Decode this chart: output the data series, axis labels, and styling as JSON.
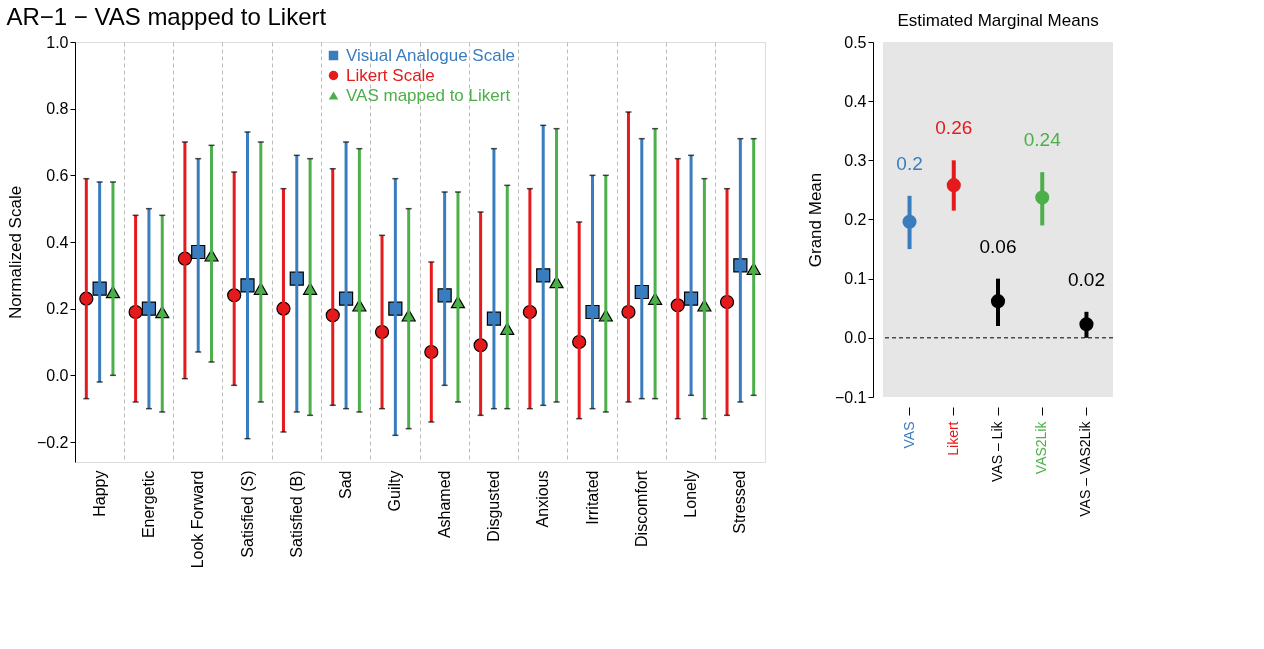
{
  "chart_data": [
    {
      "type": "scatter",
      "title": "AR−1 − VAS mapped to Likert",
      "ylabel": "Normalized Scale",
      "categories": [
        "Happy",
        "Energetic",
        "Look Forward",
        "Satisfied (S)",
        "Satisfied (B)",
        "Sad",
        "Guilty",
        "Ashamed",
        "Disgusted",
        "Anxious",
        "Irritated",
        "Discomfort",
        "Lonely",
        "Stressed"
      ],
      "series": [
        {
          "name": "Visual Analogue Scale",
          "color": "#3a7dbf",
          "marker": "square",
          "values": [
            0.26,
            0.2,
            0.37,
            0.27,
            0.29,
            0.23,
            0.2,
            0.24,
            0.17,
            0.3,
            0.19,
            0.25,
            0.23,
            0.33
          ],
          "errors": [
            [
              -0.02,
              0.58
            ],
            [
              -0.1,
              0.5
            ],
            [
              0.07,
              0.65
            ],
            [
              -0.19,
              0.73
            ],
            [
              -0.11,
              0.66
            ],
            [
              -0.1,
              0.7
            ],
            [
              -0.18,
              0.59
            ],
            [
              -0.03,
              0.55
            ],
            [
              -0.1,
              0.68
            ],
            [
              -0.09,
              0.75
            ],
            [
              -0.1,
              0.6
            ],
            [
              -0.07,
              0.71
            ],
            [
              -0.06,
              0.66
            ],
            [
              -0.08,
              0.71
            ]
          ]
        },
        {
          "name": "Likert Scale",
          "color": "#e41a1c",
          "marker": "circle",
          "values": [
            0.23,
            0.19,
            0.35,
            0.24,
            0.2,
            0.18,
            0.13,
            0.07,
            0.09,
            0.19,
            0.1,
            0.19,
            0.21,
            0.22
          ],
          "errors": [
            [
              -0.07,
              0.59
            ],
            [
              -0.08,
              0.48
            ],
            [
              -0.01,
              0.7
            ],
            [
              -0.03,
              0.61
            ],
            [
              -0.17,
              0.56
            ],
            [
              -0.09,
              0.62
            ],
            [
              -0.1,
              0.42
            ],
            [
              -0.14,
              0.34
            ],
            [
              -0.12,
              0.49
            ],
            [
              -0.1,
              0.56
            ],
            [
              -0.13,
              0.46
            ],
            [
              -0.08,
              0.79
            ],
            [
              -0.13,
              0.65
            ],
            [
              -0.12,
              0.56
            ]
          ]
        },
        {
          "name": "VAS mapped to Likert",
          "color": "#4daf4a",
          "marker": "triangle",
          "values": [
            0.25,
            0.19,
            0.36,
            0.26,
            0.26,
            0.21,
            0.18,
            0.22,
            0.14,
            0.28,
            0.18,
            0.23,
            0.21,
            0.32
          ],
          "errors": [
            [
              0.0,
              0.58
            ],
            [
              -0.11,
              0.48
            ],
            [
              0.04,
              0.69
            ],
            [
              -0.08,
              0.7
            ],
            [
              -0.12,
              0.65
            ],
            [
              -0.11,
              0.68
            ],
            [
              -0.16,
              0.5
            ],
            [
              -0.08,
              0.55
            ],
            [
              -0.1,
              0.57
            ],
            [
              -0.08,
              0.74
            ],
            [
              -0.11,
              0.6
            ],
            [
              -0.07,
              0.74
            ],
            [
              -0.13,
              0.59
            ],
            [
              -0.06,
              0.71
            ]
          ]
        }
      ],
      "ylim": [
        -0.26,
        1.0
      ],
      "yticks": [
        {
          "value": -0.2,
          "label": "−0.2"
        },
        {
          "value": 0.0,
          "label": "0.0"
        },
        {
          "value": 0.2,
          "label": "0.2"
        },
        {
          "value": 0.4,
          "label": "0.4"
        },
        {
          "value": 0.6,
          "label": "0.6"
        },
        {
          "value": 0.8,
          "label": "0.8"
        },
        {
          "value": 1.0,
          "label": "1.0"
        }
      ],
      "grid": "x",
      "legend": "top"
    },
    {
      "type": "scatter",
      "title": "Estimated Marginal Means",
      "ylabel": "Grand Mean",
      "categories": [
        "VAS",
        "Likert",
        "VAS – Lik",
        "VAS2Lik",
        "VAS – VAS2Lik"
      ],
      "values": [
        0.196,
        0.258,
        0.062,
        0.237,
        0.023
      ],
      "colors": [
        "#3a7dbf",
        "#e41a1c",
        "#000000",
        "#4daf4a",
        "#000000"
      ],
      "errors": [
        [
          0.15,
          0.24
        ],
        [
          0.215,
          0.3
        ],
        [
          0.02,
          0.1
        ],
        [
          0.19,
          0.28
        ],
        [
          0.0,
          0.044
        ]
      ],
      "value_labels": [
        "0.2",
        "0.26",
        "0.06",
        "0.24",
        "0.02"
      ],
      "ylim": [
        -0.1,
        0.5
      ],
      "yticks": [
        {
          "value": -0.1,
          "label": "−0.1"
        },
        {
          "value": 0.0,
          "label": "0.0"
        },
        0.1,
        0.2,
        0.3,
        0.4,
        0.5
      ],
      "ref_lines": [
        {
          "axis": "y",
          "value": 0,
          "line_style": "dashed",
          "color": "#000000"
        }
      ],
      "grid": false,
      "legend": false
    }
  ]
}
